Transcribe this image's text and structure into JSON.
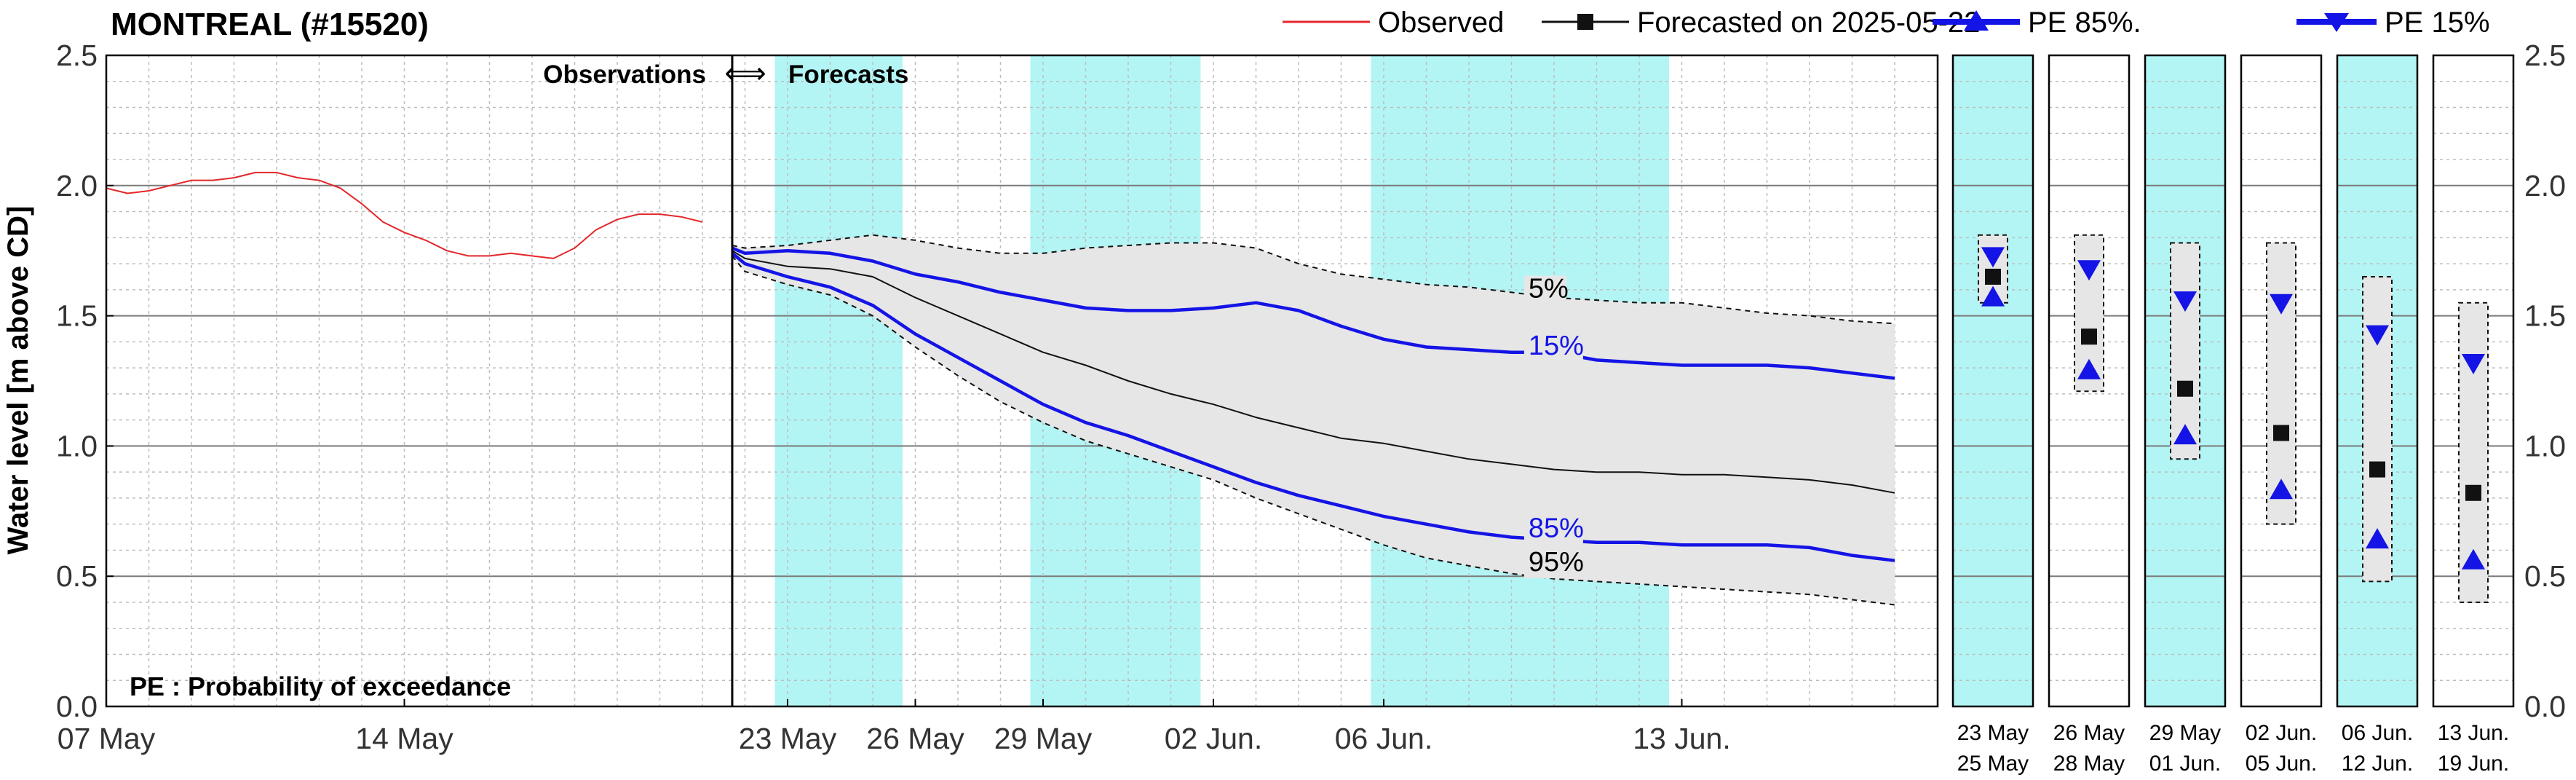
{
  "chart_data": {
    "type": "line",
    "title": "MONTREAL (#15520)",
    "ylabel": "Water level [m above CD]",
    "ylim": [
      0,
      2.5
    ],
    "y_ticks": [
      "0.0",
      "0.5",
      "1.0",
      "1.5",
      "2.0",
      "2.5"
    ],
    "obs_label": "Observations",
    "fc_label": "Forecasts",
    "arrow_glyph": "⟺",
    "pe_note": "PE : Probability of exceedance",
    "legend": {
      "observed": "Observed",
      "forecast": "Forecasted on 2025-05-22",
      "pe85": "PE 85%.",
      "pe15": "PE 15%"
    },
    "colors": {
      "observed": "#e3272b",
      "forecast": "#111111",
      "pe": "#1414e6",
      "band": "#e6e6e6",
      "weekend": "#b3f5f5",
      "grid": "#bdbdbd"
    },
    "x_ticks": [
      {
        "label": "07 May",
        "day": 0
      },
      {
        "label": "14 May",
        "day": 7
      },
      {
        "label": "23 May",
        "day": 16
      },
      {
        "label": "26 May",
        "day": 19
      },
      {
        "label": "29 May",
        "day": 22
      },
      {
        "label": "02 Jun.",
        "day": 26
      },
      {
        "label": "06 Jun.",
        "day": 30
      },
      {
        "label": "13 Jun.",
        "day": 37
      }
    ],
    "forecast_start_day": 14.7,
    "shaded_days": [
      [
        15.7,
        18.7
      ],
      [
        21.7,
        25.7
      ],
      [
        29.7,
        36.7
      ]
    ],
    "observed": {
      "x": [
        0,
        0.5,
        1,
        1.5,
        2,
        2.5,
        3,
        3.5,
        4,
        4.5,
        5,
        5.5,
        6,
        6.5,
        7,
        7.5,
        8,
        8.5,
        9,
        9.5,
        10,
        10.5,
        11,
        11.5,
        12,
        12.5,
        13,
        13.5,
        14
      ],
      "y": [
        1.99,
        1.97,
        1.98,
        2.0,
        2.02,
        2.02,
        2.03,
        2.05,
        2.05,
        2.03,
        2.02,
        1.99,
        1.93,
        1.86,
        1.82,
        1.79,
        1.75,
        1.73,
        1.73,
        1.74,
        1.73,
        1.72,
        1.76,
        1.83,
        1.87,
        1.89,
        1.89,
        1.88,
        1.86
      ]
    },
    "forecast": {
      "x": [
        14.7,
        15,
        16,
        17,
        18,
        19,
        20,
        21,
        22,
        23,
        24,
        25,
        26,
        27,
        28,
        29,
        30,
        31,
        32,
        33,
        34,
        35,
        36,
        37,
        38,
        39,
        40,
        41,
        42
      ],
      "y": [
        1.75,
        1.72,
        1.69,
        1.68,
        1.65,
        1.57,
        1.5,
        1.43,
        1.36,
        1.31,
        1.25,
        1.2,
        1.16,
        1.11,
        1.07,
        1.03,
        1.01,
        0.98,
        0.95,
        0.93,
        0.91,
        0.9,
        0.9,
        0.89,
        0.89,
        0.88,
        0.87,
        0.85,
        0.82
      ]
    },
    "pe15": {
      "x": [
        14.7,
        15,
        16,
        17,
        18,
        19,
        20,
        21,
        22,
        23,
        24,
        25,
        26,
        27,
        28,
        29,
        30,
        31,
        32,
        33,
        34,
        35,
        36,
        37,
        38,
        39,
        40,
        41,
        42
      ],
      "y": [
        1.76,
        1.74,
        1.75,
        1.74,
        1.71,
        1.66,
        1.63,
        1.59,
        1.56,
        1.53,
        1.52,
        1.52,
        1.53,
        1.55,
        1.52,
        1.46,
        1.41,
        1.38,
        1.37,
        1.36,
        1.36,
        1.33,
        1.32,
        1.31,
        1.31,
        1.31,
        1.3,
        1.28,
        1.26
      ]
    },
    "pe85": {
      "x": [
        14.7,
        15,
        16,
        17,
        18,
        19,
        20,
        21,
        22,
        23,
        24,
        25,
        26,
        27,
        28,
        29,
        30,
        31,
        32,
        33,
        34,
        35,
        36,
        37,
        38,
        39,
        40,
        41,
        42
      ],
      "y": [
        1.74,
        1.7,
        1.65,
        1.61,
        1.54,
        1.43,
        1.34,
        1.25,
        1.16,
        1.09,
        1.04,
        0.98,
        0.92,
        0.86,
        0.81,
        0.77,
        0.73,
        0.7,
        0.67,
        0.65,
        0.64,
        0.63,
        0.63,
        0.62,
        0.62,
        0.62,
        0.61,
        0.58,
        0.56
      ]
    },
    "pe5": {
      "x": [
        14.7,
        15,
        16,
        17,
        18,
        19,
        20,
        21,
        22,
        23,
        24,
        25,
        26,
        27,
        28,
        29,
        30,
        31,
        32,
        33,
        34,
        35,
        36,
        37,
        38,
        39,
        40,
        41,
        42
      ],
      "y": [
        1.77,
        1.76,
        1.77,
        1.79,
        1.81,
        1.79,
        1.76,
        1.74,
        1.74,
        1.76,
        1.77,
        1.78,
        1.78,
        1.76,
        1.7,
        1.66,
        1.64,
        1.62,
        1.61,
        1.59,
        1.57,
        1.56,
        1.55,
        1.55,
        1.53,
        1.51,
        1.5,
        1.48,
        1.47
      ]
    },
    "pe95": {
      "x": [
        14.7,
        15,
        16,
        17,
        18,
        19,
        20,
        21,
        22,
        23,
        24,
        25,
        26,
        27,
        28,
        29,
        30,
        31,
        32,
        33,
        34,
        35,
        36,
        37,
        38,
        39,
        40,
        41,
        42
      ],
      "y": [
        1.73,
        1.67,
        1.62,
        1.58,
        1.5,
        1.38,
        1.27,
        1.17,
        1.09,
        1.02,
        0.97,
        0.92,
        0.87,
        0.8,
        0.74,
        0.68,
        0.62,
        0.57,
        0.54,
        0.51,
        0.49,
        0.48,
        0.47,
        0.46,
        0.45,
        0.44,
        0.43,
        0.41,
        0.39
      ]
    },
    "curve_labels": [
      {
        "text": "5%",
        "day": 33.4,
        "y": 1.57,
        "color": "black"
      },
      {
        "text": "15%",
        "day": 33.4,
        "y": 1.35,
        "color": "blue"
      },
      {
        "text": "85%",
        "day": 33.4,
        "y": 0.65,
        "color": "blue"
      },
      {
        "text": "95%",
        "day": 33.4,
        "y": 0.52,
        "color": "black"
      }
    ],
    "periods": [
      {
        "start": "23 May",
        "end": "25 May",
        "weekend": true,
        "lo": 1.55,
        "hi": 1.81,
        "fc": 1.65,
        "pe85": 1.57,
        "pe15": 1.73
      },
      {
        "start": "26 May",
        "end": "28 May",
        "weekend": false,
        "lo": 1.21,
        "hi": 1.81,
        "fc": 1.42,
        "pe85": 1.29,
        "pe15": 1.68
      },
      {
        "start": "29 May",
        "end": "01 Jun.",
        "weekend": true,
        "lo": 0.95,
        "hi": 1.78,
        "fc": 1.22,
        "pe85": 1.04,
        "pe15": 1.56
      },
      {
        "start": "02 Jun.",
        "end": "05 Jun.",
        "weekend": false,
        "lo": 0.7,
        "hi": 1.78,
        "fc": 1.05,
        "pe85": 0.83,
        "pe15": 1.55
      },
      {
        "start": "06 Jun.",
        "end": "12 Jun.",
        "weekend": true,
        "lo": 0.48,
        "hi": 1.65,
        "fc": 0.91,
        "pe85": 0.64,
        "pe15": 1.43
      },
      {
        "start": "13 Jun.",
        "end": "19 Jun.",
        "weekend": false,
        "lo": 0.4,
        "hi": 1.55,
        "fc": 0.82,
        "pe85": 0.56,
        "pe15": 1.32
      }
    ]
  }
}
